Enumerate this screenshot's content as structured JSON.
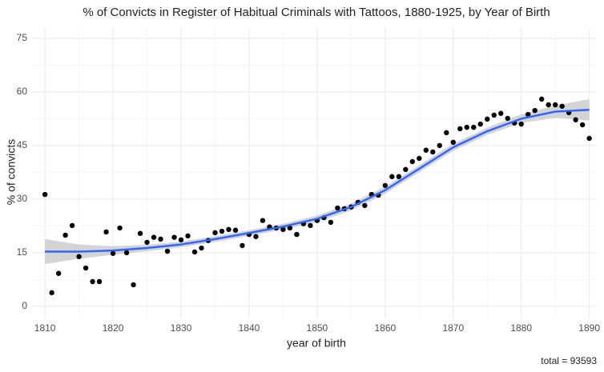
{
  "chart_data": {
    "type": "scatter",
    "title": "% of Convicts in Register of Habitual Criminals with Tattoos, 1880-1925, by Year of Birth",
    "x_label": "year of birth",
    "y_label": "% of convicts",
    "caption": "total = 93593",
    "xlim": [
      1808.1,
      1891.1
    ],
    "ylim": [
      -3.4,
      77.9
    ],
    "xticks": [
      1810,
      1820,
      1830,
      1840,
      1850,
      1860,
      1870,
      1880,
      1890
    ],
    "yticks": [
      0,
      15,
      30,
      45,
      60,
      75
    ],
    "grid": true,
    "x": [
      1810,
      1811,
      1812,
      1813,
      1814,
      1815,
      1816,
      1817,
      1818,
      1819,
      1820,
      1821,
      1822,
      1823,
      1824,
      1825,
      1826,
      1827,
      1828,
      1829,
      1830,
      1831,
      1832,
      1833,
      1834,
      1835,
      1836,
      1837,
      1838,
      1839,
      1840,
      1841,
      1842,
      1843,
      1844,
      1845,
      1846,
      1847,
      1848,
      1849,
      1850,
      1851,
      1852,
      1853,
      1854,
      1855,
      1856,
      1857,
      1858,
      1859,
      1860,
      1861,
      1862,
      1863,
      1864,
      1865,
      1866,
      1867,
      1868,
      1869,
      1870,
      1871,
      1872,
      1873,
      1874,
      1875,
      1876,
      1877,
      1878,
      1879,
      1880,
      1881,
      1882,
      1883,
      1884,
      1885,
      1886,
      1887,
      1888,
      1889,
      1890
    ],
    "series": [
      {
        "color": "#000000",
        "values": [
          31.3,
          3.8,
          9.2,
          19.9,
          22.6,
          13.9,
          10.7,
          6.9,
          6.9,
          20.8,
          14.8,
          21.9,
          15.0,
          6.0,
          20.4,
          17.9,
          19.3,
          18.8,
          15.4,
          19.3,
          18.6,
          19.7,
          15.2,
          16.3,
          18.4,
          20.6,
          21.0,
          21.5,
          21.3,
          17.0,
          20.1,
          19.5,
          24.0,
          22.2,
          21.9,
          21.5,
          21.9,
          20.1,
          23.1,
          22.6,
          24.0,
          24.8,
          23.5,
          27.5,
          27.3,
          27.8,
          29.1,
          28.2,
          31.3,
          31.1,
          33.8,
          36.3,
          36.3,
          38.3,
          40.5,
          41.4,
          43.7,
          43.2,
          45.0,
          48.6,
          45.9,
          49.7,
          50.1,
          50.1,
          51.0,
          52.4,
          53.5,
          54.0,
          52.6,
          51.3,
          51.0,
          53.7,
          54.8,
          58.0,
          56.4,
          56.4,
          56.0,
          54.2,
          52.2,
          50.8,
          47.0
        ]
      }
    ],
    "smooth": {
      "color": "#3366ff",
      "band_color": "#cccccc",
      "x": [
        1810,
        1815,
        1820,
        1825,
        1830,
        1835,
        1840,
        1845,
        1850,
        1855,
        1860,
        1865,
        1870,
        1875,
        1880,
        1885,
        1890
      ],
      "values": [
        15.3,
        15.3,
        15.6,
        16.3,
        17.3,
        18.8,
        20.5,
        22.3,
        24.5,
        27.8,
        32.5,
        38.5,
        44.5,
        49.0,
        52.5,
        54.5,
        55.0
      ],
      "lower": [
        11.8,
        13.3,
        14.4,
        15.4,
        16.5,
        18.0,
        19.7,
        21.5,
        23.6,
        26.8,
        31.5,
        37.5,
        43.5,
        48.0,
        51.3,
        52.8,
        52.0
      ],
      "upper": [
        18.8,
        17.3,
        16.8,
        17.2,
        18.1,
        19.6,
        21.3,
        23.1,
        25.4,
        28.8,
        33.5,
        39.5,
        45.5,
        50.0,
        53.7,
        56.2,
        58.0
      ]
    }
  }
}
